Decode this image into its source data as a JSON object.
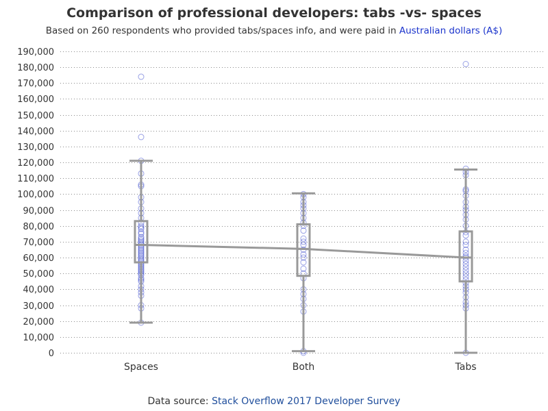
{
  "title": "Comparison of professional developers: tabs -vs- spaces",
  "subtitle_prefix": "Based on 260 respondents who provided tabs/spaces info, and were paid in",
  "subtitle_link": "Australian dollars (A$)",
  "source_prefix": "Data source:",
  "source_link": "Stack Overflow 2017 Developer Survey",
  "colors": {
    "point": "#3344cc",
    "box": "#999999",
    "grid": "#888888",
    "text": "#333333",
    "link": "#1f4e9c"
  },
  "chart_data": {
    "type": "box",
    "categories": [
      "Spaces",
      "Both",
      "Tabs"
    ],
    "y_ticks": [
      0,
      10000,
      20000,
      30000,
      40000,
      50000,
      60000,
      70000,
      80000,
      90000,
      100000,
      110000,
      120000,
      130000,
      140000,
      150000,
      160000,
      170000,
      180000,
      190000
    ],
    "y_tick_labels": [
      "0",
      "10,000",
      "20,000",
      "30,000",
      "40,000",
      "50,000",
      "60,000",
      "70,000",
      "80,000",
      "90,000",
      "100,000",
      "110,000",
      "120,000",
      "130,000",
      "140,000",
      "150,000",
      "160,000",
      "170,000",
      "180,000",
      "190,000"
    ],
    "ylim": [
      0,
      190000
    ],
    "grid": "horizontal-dotted",
    "boxes": [
      {
        "category": "Spaces",
        "whisker_low": 19000,
        "q1": 57000,
        "median": 68000,
        "mean": 68000,
        "q3": 83000,
        "whisker_high": 121000
      },
      {
        "category": "Both",
        "whisker_low": 1000,
        "q1": 48500,
        "median": 65500,
        "mean": 65500,
        "q3": 81000,
        "whisker_high": 100500
      },
      {
        "category": "Tabs",
        "whisker_low": 0,
        "q1": 45000,
        "median": 60000,
        "mean": 60000,
        "q3": 76500,
        "whisker_high": 115500
      }
    ],
    "points": [
      {
        "category": "Spaces",
        "values": [
          174000,
          136000,
          121000,
          113000,
          106000,
          105000,
          98000,
          95000,
          91000,
          88000,
          85000,
          82000,
          80000,
          79000,
          78000,
          76000,
          75000,
          73000,
          72000,
          71000,
          70000,
          69000,
          68000,
          67000,
          66000,
          65000,
          64000,
          63000,
          62000,
          61000,
          60000,
          59000,
          58000,
          57000,
          56000,
          55000,
          54000,
          53000,
          52000,
          51000,
          50000,
          49000,
          47000,
          46000,
          45000,
          42000,
          40000,
          38000,
          36000,
          30000,
          28000,
          19000
        ]
      },
      {
        "category": "Both",
        "values": [
          100000,
          98000,
          95000,
          93000,
          91000,
          88000,
          85000,
          82000,
          80000,
          77000,
          72000,
          70000,
          68000,
          65000,
          62000,
          60000,
          57000,
          53000,
          50000,
          47000,
          40000,
          37000,
          34000,
          30000,
          26000,
          1000,
          0
        ]
      },
      {
        "category": "Tabs",
        "values": [
          182000,
          116000,
          114000,
          112000,
          103000,
          102000,
          99000,
          95000,
          92000,
          90000,
          87000,
          84000,
          80000,
          76000,
          74000,
          70000,
          68000,
          65000,
          63000,
          61000,
          60000,
          58000,
          56000,
          54000,
          52000,
          50000,
          48000,
          46000,
          44000,
          42000,
          40000,
          38000,
          35000,
          32000,
          30000,
          28000,
          0
        ]
      }
    ]
  }
}
